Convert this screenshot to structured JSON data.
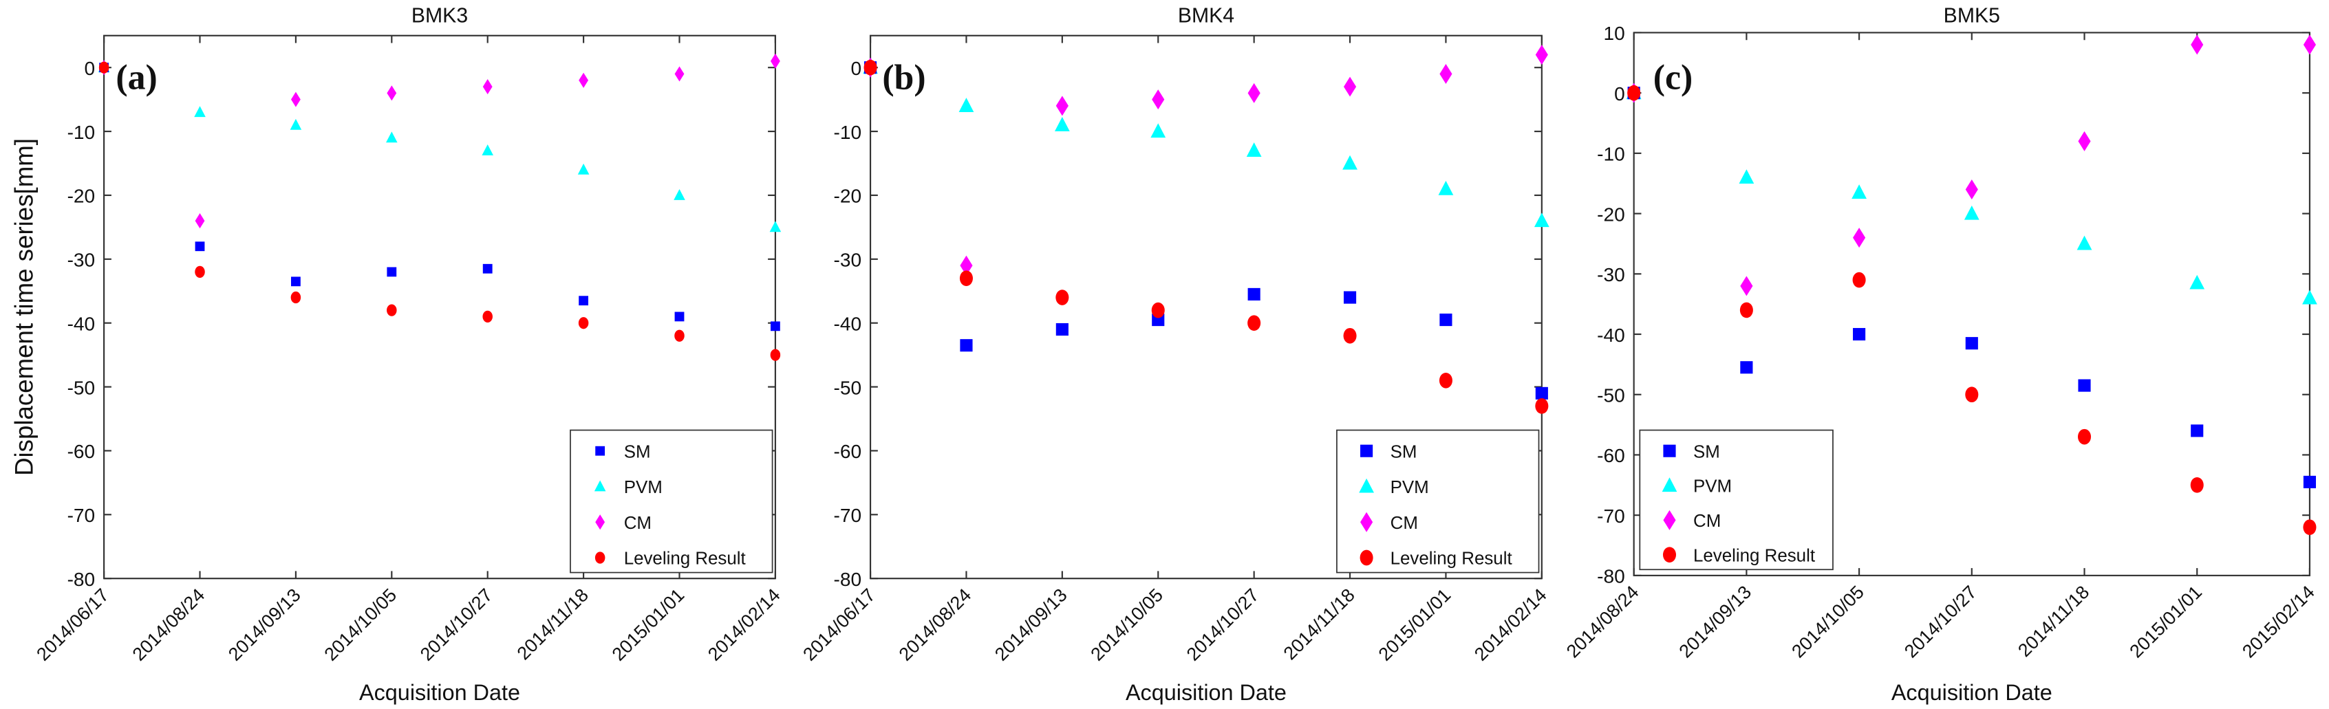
{
  "y_axis_label": "Displacement time series[mm]",
  "legend_entries": [
    "SM",
    "PVM",
    "CM",
    "Leveling Result"
  ],
  "colors": {
    "SM": "#0000ff",
    "PVM": "#00ffff",
    "CM": "#ff00ff",
    "Leveling Result": "#ff0000"
  },
  "markers": {
    "SM": "square",
    "PVM": "triangle",
    "CM": "diamond",
    "Leveling Result": "circle"
  },
  "chart_data": [
    {
      "type": "scatter",
      "title": "BMK3",
      "panel_label": "(a)",
      "xlabel": "Acquisition Date",
      "ylabel": "Displacement time series[mm]",
      "categories": [
        "2014/06/17",
        "2014/08/24",
        "2014/09/13",
        "2014/10/05",
        "2014/10/27",
        "2014/11/18",
        "2015/01/01",
        "2014/02/14"
      ],
      "ylim": [
        -80,
        5
      ],
      "yticks": [
        0,
        -10,
        -20,
        -30,
        -40,
        -50,
        -60,
        -70,
        -80
      ],
      "legend_position": "bottom-right",
      "series": [
        {
          "name": "SM",
          "values": [
            0,
            -28,
            -33.5,
            -32,
            -31.5,
            -36.5,
            -39,
            -40.5
          ]
        },
        {
          "name": "PVM",
          "values": [
            0,
            -7,
            -9,
            -11,
            -13,
            -16,
            -20,
            -25
          ]
        },
        {
          "name": "CM",
          "values": [
            0,
            -24,
            -5,
            -4,
            -3,
            -2,
            -1,
            1
          ]
        },
        {
          "name": "Leveling Result",
          "values": [
            0,
            -32,
            -36,
            -38,
            -39,
            -40,
            -42,
            -45
          ]
        }
      ]
    },
    {
      "type": "scatter",
      "title": "BMK4",
      "panel_label": "(b)",
      "xlabel": "Acquisition Date",
      "categories": [
        "2014/06/17",
        "2014/08/24",
        "2014/09/13",
        "2014/10/05",
        "2014/10/27",
        "2014/11/18",
        "2015/01/01",
        "2014/02/14"
      ],
      "ylim": [
        -80,
        5
      ],
      "yticks": [
        0,
        -10,
        -20,
        -30,
        -40,
        -50,
        -60,
        -70,
        -80
      ],
      "legend_position": "bottom-right",
      "series": [
        {
          "name": "SM",
          "values": [
            0,
            -43.5,
            -41,
            -39.5,
            -35.5,
            -36,
            -39.5,
            -51
          ]
        },
        {
          "name": "PVM",
          "values": [
            0,
            -6,
            -9,
            -10,
            -13,
            -15,
            -19,
            -24
          ]
        },
        {
          "name": "CM",
          "values": [
            0,
            -31,
            -6,
            -5,
            -4,
            -3,
            -1,
            2
          ]
        },
        {
          "name": "Leveling Result",
          "values": [
            0,
            -33,
            -36,
            -38,
            -40,
            -42,
            -49,
            -53
          ]
        }
      ]
    },
    {
      "type": "scatter",
      "title": "BMK5",
      "panel_label": "(c)",
      "xlabel": "Acquisition Date",
      "categories": [
        "2014/08/24",
        "2014/09/13",
        "2014/10/05",
        "2014/10/27",
        "2014/11/18",
        "2015/01/01",
        "2015/02/14"
      ],
      "ylim": [
        -80,
        10
      ],
      "yticks": [
        10,
        0,
        -10,
        -20,
        -30,
        -40,
        -50,
        -60,
        -70,
        -80
      ],
      "legend_position": "bottom-left",
      "series": [
        {
          "name": "SM",
          "values": [
            0,
            -45.5,
            -40,
            -41.5,
            -48.5,
            -56,
            -64.5
          ]
        },
        {
          "name": "PVM",
          "values": [
            0,
            -14,
            -16.5,
            -20,
            -25,
            -31.5,
            -34
          ]
        },
        {
          "name": "CM",
          "values": [
            0,
            -32,
            -24,
            -16,
            -8,
            8,
            8
          ]
        },
        {
          "name": "Leveling Result",
          "values": [
            0,
            -36,
            -31,
            -50,
            -57,
            -65,
            -72
          ]
        }
      ]
    }
  ]
}
